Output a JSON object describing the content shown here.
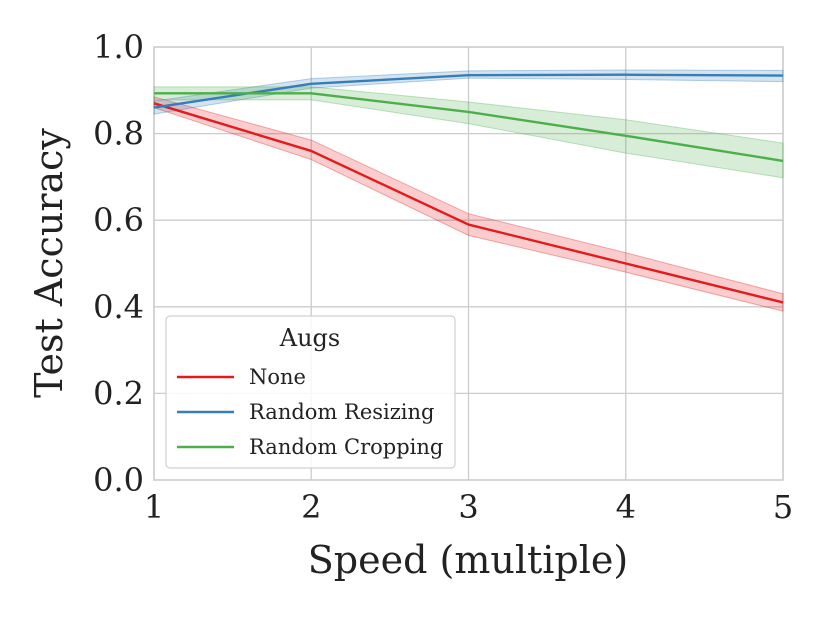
{
  "chart_data": {
    "type": "line",
    "title": "",
    "xlabel": "Speed (multiple)",
    "ylabel": "Test Accuracy",
    "x": [
      1,
      2,
      3,
      4,
      5
    ],
    "xlim": [
      1,
      5
    ],
    "ylim": [
      0.0,
      1.0
    ],
    "xticks": [
      "1",
      "2",
      "3",
      "4",
      "5"
    ],
    "yticks": [
      "0.0",
      "0.2",
      "0.4",
      "0.6",
      "0.8",
      "1.0"
    ],
    "grid": true,
    "legend": {
      "title": "Augs",
      "placement": "lower-left"
    },
    "series": [
      {
        "name": "None",
        "color": "#e41a1c",
        "values": [
          0.87,
          0.76,
          0.59,
          0.5,
          0.41
        ],
        "lower": [
          0.86,
          0.74,
          0.565,
          0.48,
          0.39
        ],
        "upper": [
          0.885,
          0.785,
          0.615,
          0.525,
          0.43
        ]
      },
      {
        "name": "Random Resizing",
        "color": "#377eb8",
        "values": [
          0.86,
          0.915,
          0.935,
          0.936,
          0.934
        ],
        "lower": [
          0.845,
          0.905,
          0.928,
          0.925,
          0.92
        ],
        "upper": [
          0.875,
          0.927,
          0.945,
          0.947,
          0.946
        ]
      },
      {
        "name": "Random Cropping",
        "color": "#4daf4a",
        "values": [
          0.893,
          0.893,
          0.85,
          0.795,
          0.737
        ],
        "lower": [
          0.878,
          0.878,
          0.823,
          0.755,
          0.698
        ],
        "upper": [
          0.908,
          0.908,
          0.873,
          0.832,
          0.778
        ]
      }
    ]
  }
}
